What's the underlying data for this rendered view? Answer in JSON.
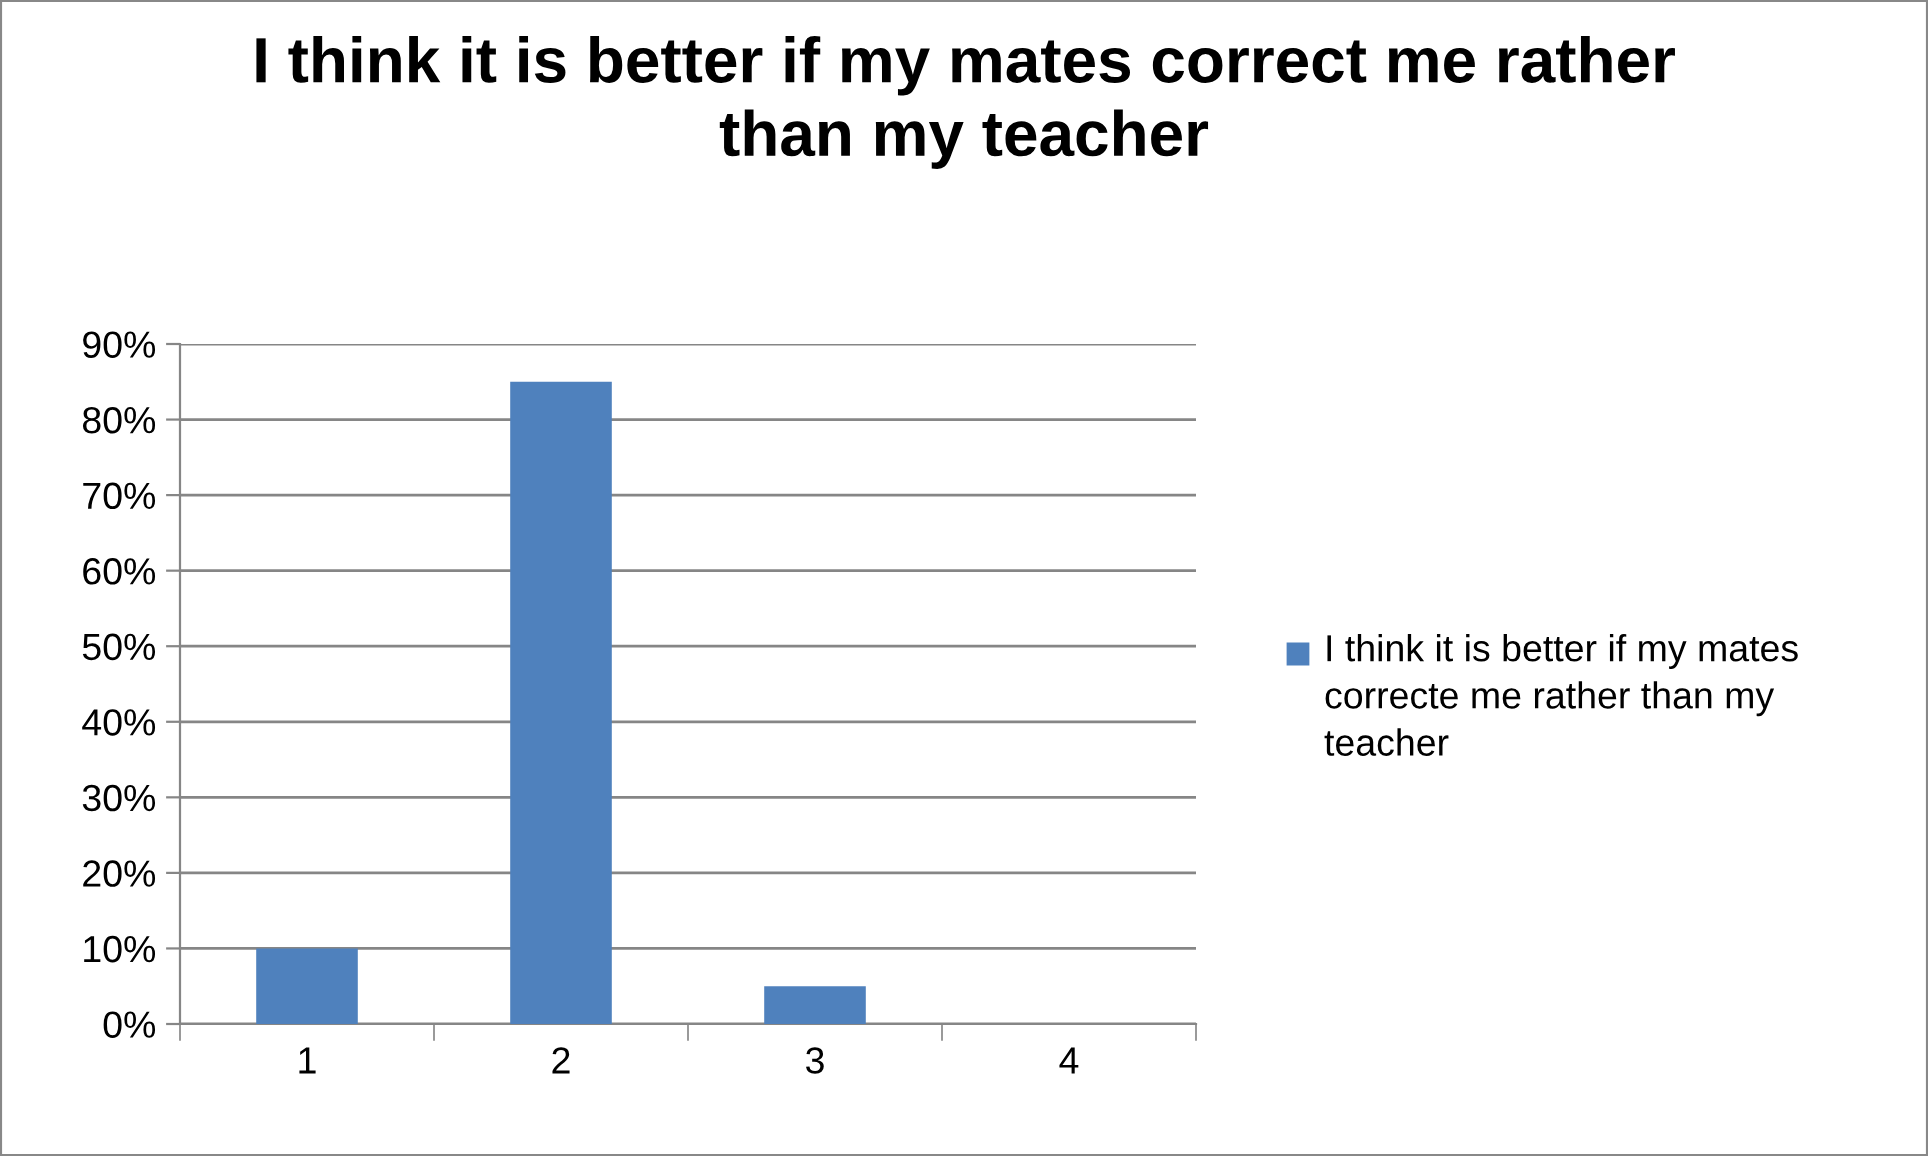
{
  "chart_data": {
    "type": "bar",
    "title": "I think it is better if my mates correct me rather than my teacher",
    "categories": [
      "1",
      "2",
      "3",
      "4"
    ],
    "series": [
      {
        "name": "I think it is better if my mates correcte me rather than my teacher",
        "color": "#4f81bd",
        "values": [
          10,
          85,
          5,
          0
        ]
      }
    ],
    "ylim": [
      0,
      90
    ],
    "yticks": [
      {
        "value": 0,
        "label": "0%"
      },
      {
        "value": 10,
        "label": "10%"
      },
      {
        "value": 20,
        "label": "20%"
      },
      {
        "value": 30,
        "label": "30%"
      },
      {
        "value": 40,
        "label": "40%"
      },
      {
        "value": 50,
        "label": "50%"
      },
      {
        "value": 60,
        "label": "60%"
      },
      {
        "value": 70,
        "label": "70%"
      },
      {
        "value": 80,
        "label": "80%"
      },
      {
        "value": 90,
        "label": "90%"
      }
    ],
    "grid": "y",
    "legend": "right"
  }
}
